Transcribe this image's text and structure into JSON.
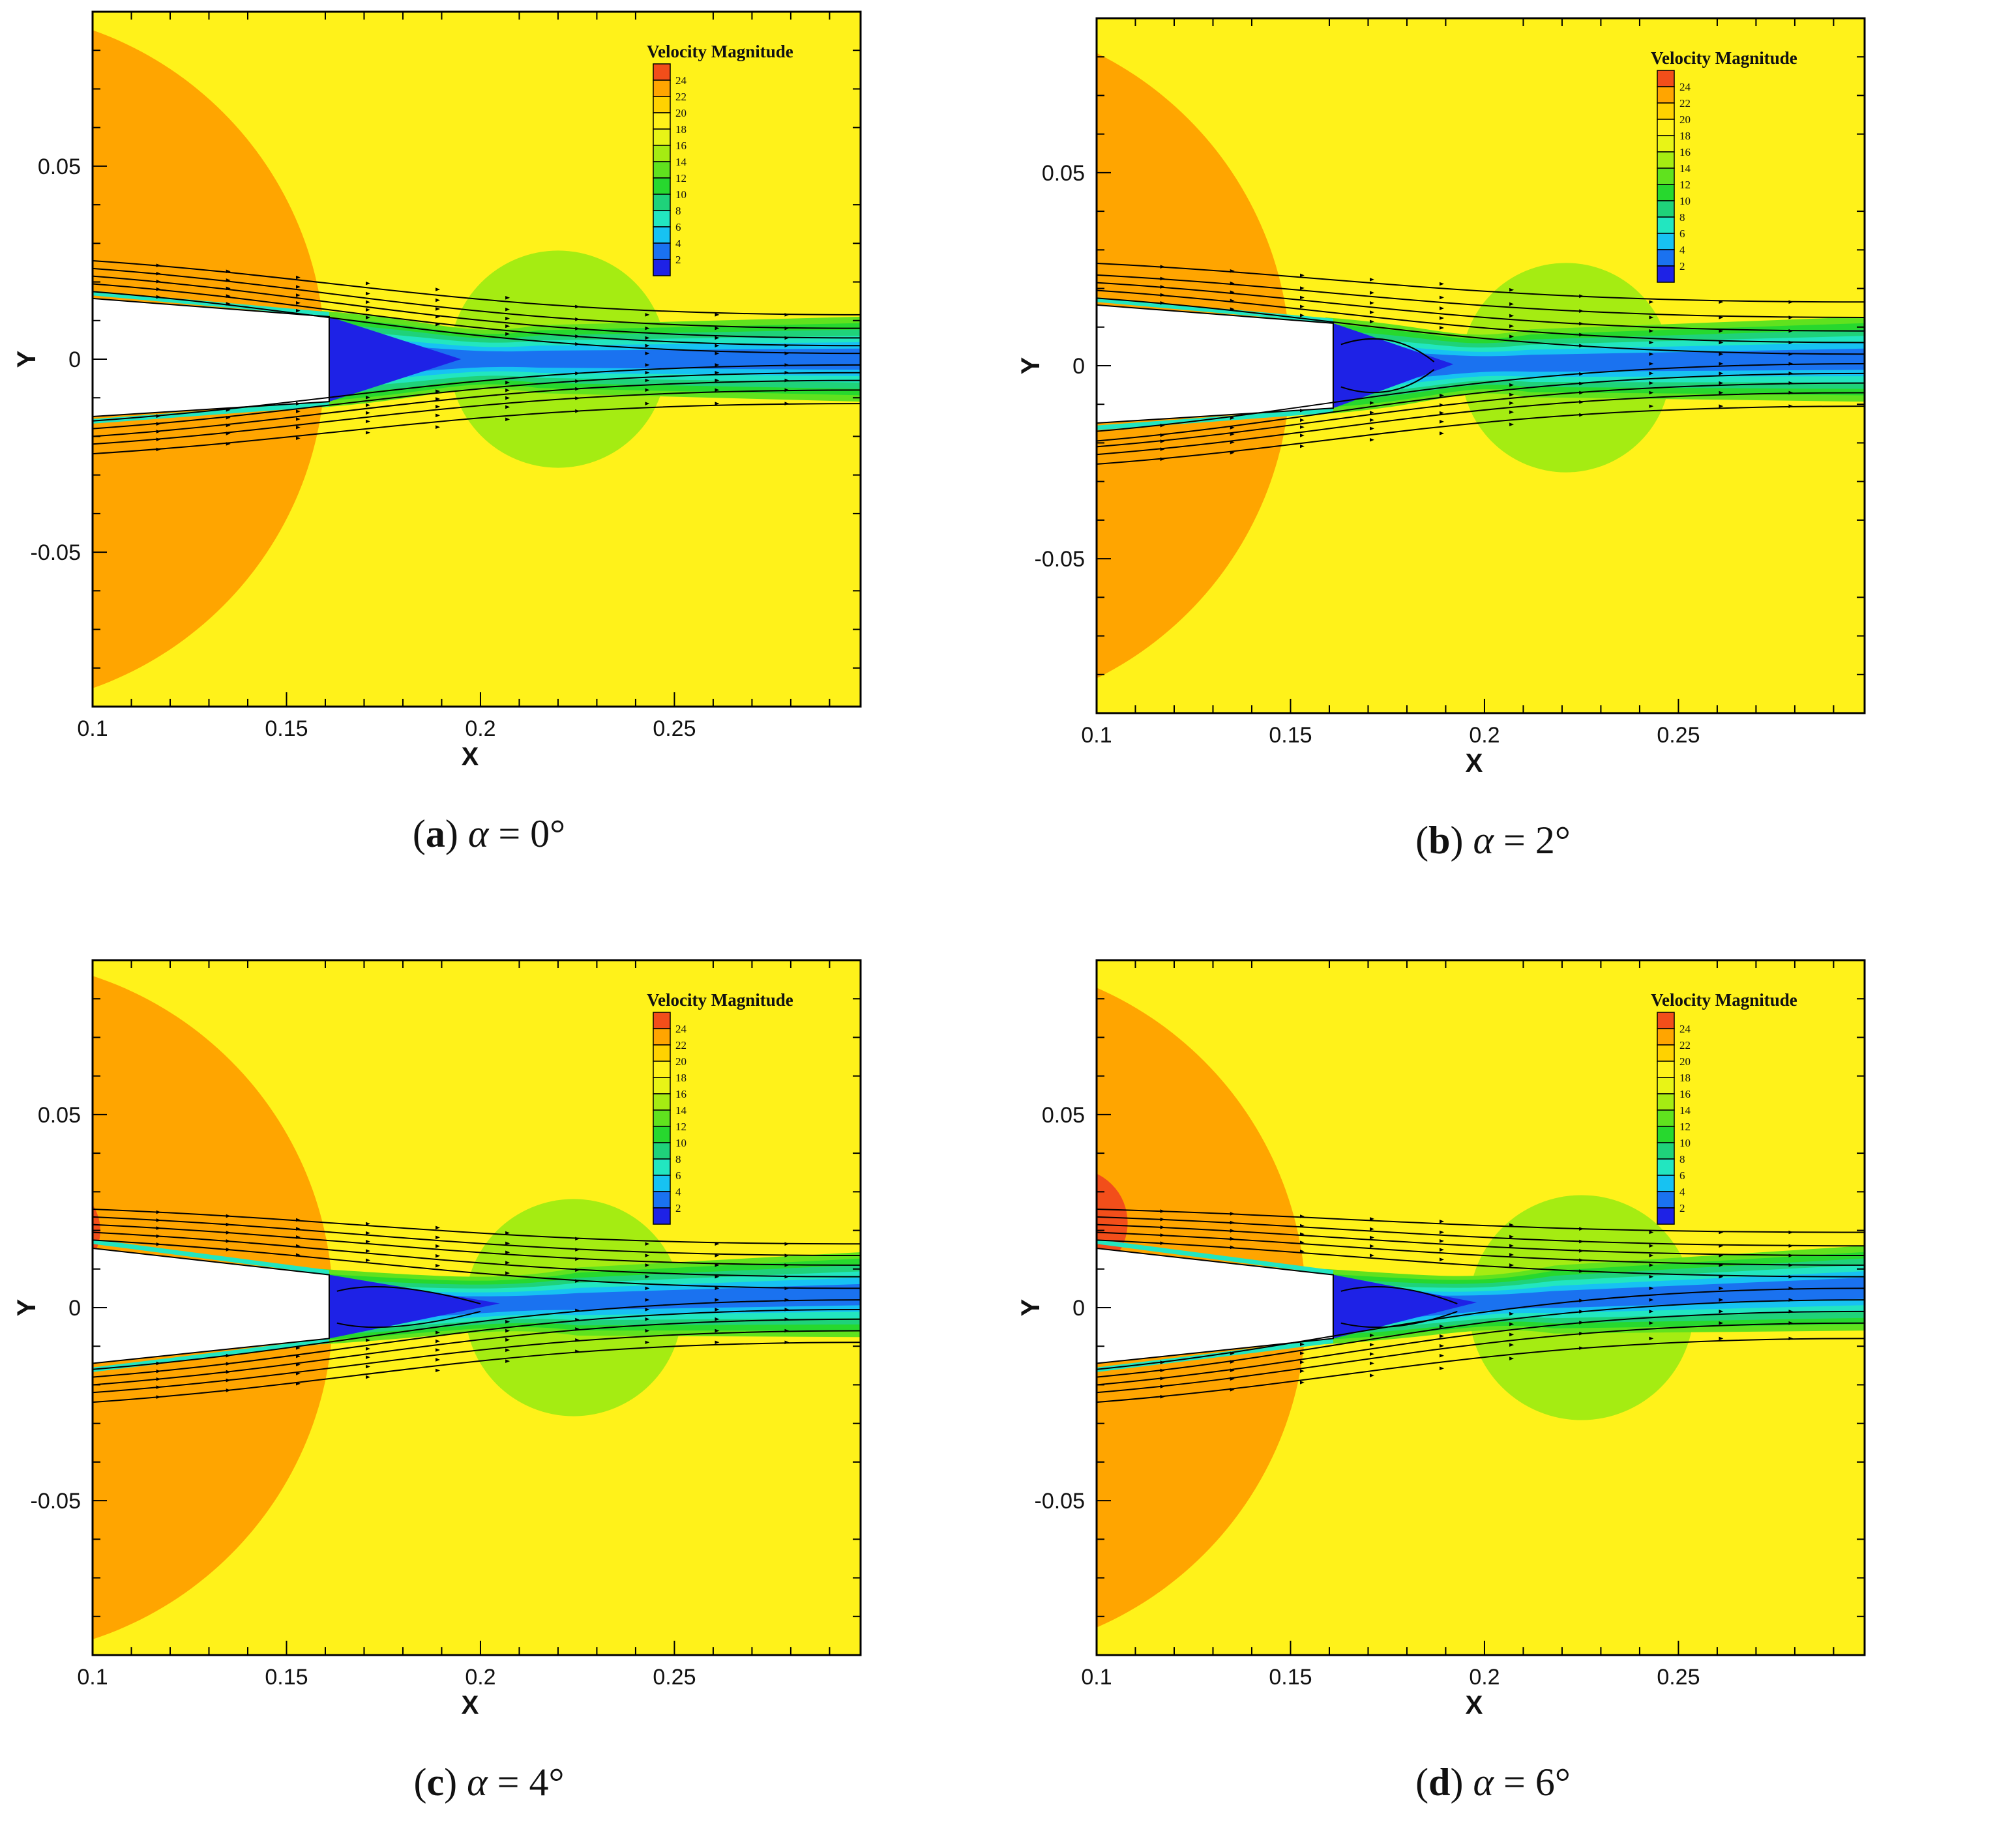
{
  "figure": {
    "legend_colors": [
      "#1E22E6",
      "#1A72F0",
      "#17C2F2",
      "#22E6C0",
      "#1FD27A",
      "#27D82E",
      "#60E21E",
      "#A5EC12",
      "#E8F416",
      "#FFF21A",
      "#FFD200",
      "#FFA500",
      "#F24E1A"
    ]
  },
  "chart_data": [
    {
      "id": "a",
      "type": "heatmap",
      "caption": {
        "letter": "a",
        "symbol": "α",
        "eq": " = ",
        "value": "0°"
      },
      "xlabel": "X",
      "ylabel": "Y",
      "xlim": [
        0.1,
        0.298
      ],
      "ylim": [
        -0.09,
        0.09
      ],
      "xticks": [
        "0.1",
        "0.15",
        "0.2",
        "0.25"
      ],
      "yticks": [
        "0.05",
        "0",
        "-0.05"
      ],
      "legend": {
        "title": "Velocity Magnitude",
        "values": [
          "24",
          "22",
          "20",
          "18",
          "16",
          "14",
          "12",
          "10",
          "8",
          "6",
          "4",
          "2"
        ]
      },
      "angle_deg": 0,
      "base_edge_x": 0.161,
      "nozzle_upper_y": [
        0.0165,
        0.011
      ],
      "nozzle_lower_y": [
        -0.0155,
        -0.011
      ],
      "orange_region": {
        "center_x": 0.07,
        "radius": 0.09
      },
      "red_region": null,
      "green_region": {
        "center_x": 0.22,
        "center_y": 0.0,
        "radius": 0.028
      },
      "recirculation_end_x": 0.195,
      "streamline_start_upper": [
        0.0175,
        0.0195,
        0.0215,
        0.0235,
        0.0255
      ],
      "streamline_start_lower": [
        -0.016,
        -0.018,
        -0.02,
        -0.022,
        -0.0245
      ],
      "streamline_end_upper": [
        0.0015,
        0.0035,
        0.0055,
        0.008,
        0.0115
      ],
      "streamline_end_lower": [
        -0.0015,
        -0.0035,
        -0.0055,
        -0.008,
        -0.0115
      ]
    },
    {
      "id": "b",
      "type": "heatmap",
      "caption": {
        "letter": "b",
        "symbol": "α",
        "eq": " = ",
        "value": "2°"
      },
      "xlabel": "X",
      "ylabel": "Y",
      "xlim": [
        0.1,
        0.298
      ],
      "ylim": [
        -0.09,
        0.09
      ],
      "xticks": [
        "0.1",
        "0.15",
        "0.2",
        "0.25"
      ],
      "yticks": [
        "0.05",
        "0",
        "-0.05"
      ],
      "legend": {
        "title": "Velocity Magnitude",
        "values": [
          "24",
          "22",
          "20",
          "18",
          "16",
          "14",
          "12",
          "10",
          "8",
          "6",
          "4",
          "2"
        ]
      },
      "angle_deg": 2,
      "base_edge_x": 0.161,
      "nozzle_upper_y": [
        0.0165,
        0.011
      ],
      "nozzle_lower_y": [
        -0.0155,
        -0.011
      ],
      "orange_region": {
        "center_x": 0.06,
        "radius": 0.09
      },
      "red_region": null,
      "green_region": {
        "center_x": 0.221,
        "center_y": -0.0005,
        "radius": 0.027
      },
      "recirculation_end_x": 0.192,
      "streamline_start_upper": [
        0.0175,
        0.0195,
        0.0215,
        0.0235,
        0.0265
      ],
      "streamline_start_lower": [
        -0.017,
        -0.0195,
        -0.021,
        -0.023,
        -0.0255
      ],
      "streamline_end_upper": [
        0.003,
        0.006,
        0.009,
        0.0125,
        0.0165
      ],
      "streamline_end_lower": [
        0.0005,
        -0.002,
        -0.0045,
        -0.007,
        -0.0105
      ]
    },
    {
      "id": "c",
      "type": "heatmap",
      "caption": {
        "letter": "c",
        "symbol": "α",
        "eq": " = ",
        "value": "4°"
      },
      "xlabel": "X",
      "ylabel": "Y",
      "xlim": [
        0.1,
        0.298
      ],
      "ylim": [
        -0.09,
        0.09
      ],
      "xticks": [
        "0.1",
        "0.15",
        "0.2",
        "0.25"
      ],
      "yticks": [
        "0.05",
        "0",
        "-0.05"
      ],
      "legend": {
        "title": "Velocity Magnitude",
        "values": [
          "24",
          "22",
          "20",
          "18",
          "16",
          "14",
          "12",
          "10",
          "8",
          "6",
          "4",
          "2"
        ]
      },
      "angle_deg": 4,
      "base_edge_x": 0.161,
      "nozzle_upper_y": [
        0.0165,
        0.0085
      ],
      "nozzle_lower_y": [
        -0.0155,
        -0.008
      ],
      "orange_region": {
        "center_x": 0.072,
        "radius": 0.09
      },
      "red_region": {
        "center_x": 0.09,
        "center_y": 0.02,
        "radius": 0.012
      },
      "green_region": {
        "center_x": 0.224,
        "center_y": 0.0,
        "radius": 0.028
      },
      "recirculation_end_x": 0.205,
      "streamline_start_upper": [
        0.0175,
        0.0195,
        0.0215,
        0.0235,
        0.0255
      ],
      "streamline_start_lower": [
        -0.016,
        -0.018,
        -0.02,
        -0.022,
        -0.0245
      ],
      "streamline_end_upper": [
        0.005,
        0.008,
        0.011,
        0.0135,
        0.0165
      ],
      "streamline_end_lower": [
        0.002,
        -0.0005,
        -0.003,
        -0.006,
        -0.009
      ]
    },
    {
      "id": "d",
      "type": "heatmap",
      "caption": {
        "letter": "d",
        "symbol": "α",
        "eq": " = ",
        "value": "6°"
      },
      "xlabel": "X",
      "ylabel": "Y",
      "xlim": [
        0.1,
        0.298
      ],
      "ylim": [
        -0.09,
        0.09
      ],
      "xticks": [
        "0.1",
        "0.15",
        "0.2",
        "0.25"
      ],
      "yticks": [
        "0.05",
        "0",
        "-0.05"
      ],
      "legend": {
        "title": "Velocity Magnitude",
        "values": [
          "24",
          "22",
          "20",
          "18",
          "16",
          "14",
          "12",
          "10",
          "8",
          "6",
          "4",
          "2"
        ]
      },
      "angle_deg": 6,
      "base_edge_x": 0.161,
      "nozzle_upper_y": [
        0.0165,
        0.0085
      ],
      "nozzle_lower_y": [
        -0.0155,
        -0.008
      ],
      "orange_region": {
        "center_x": 0.064,
        "radius": 0.09
      },
      "red_region": {
        "center_x": 0.094,
        "center_y": 0.022,
        "radius": 0.014
      },
      "green_region": {
        "center_x": 0.225,
        "center_y": 0.0,
        "radius": 0.029
      },
      "recirculation_end_x": 0.198,
      "streamline_start_upper": [
        0.0175,
        0.0195,
        0.0215,
        0.0235,
        0.0255
      ],
      "streamline_start_lower": [
        -0.016,
        -0.018,
        -0.02,
        -0.022,
        -0.0245
      ],
      "streamline_end_upper": [
        0.008,
        0.011,
        0.0135,
        0.016,
        0.0195
      ],
      "streamline_end_lower": [
        0.005,
        0.002,
        -0.001,
        -0.004,
        -0.008
      ]
    }
  ]
}
